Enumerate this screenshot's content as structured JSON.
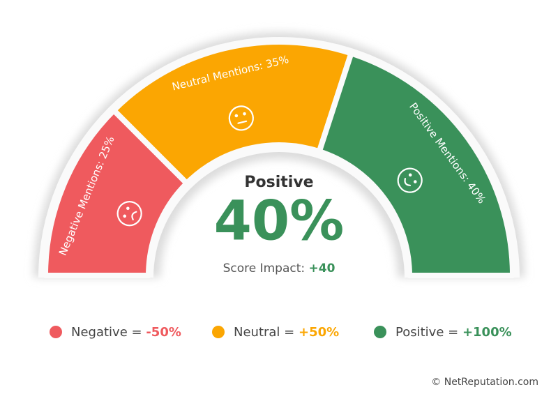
{
  "chart_data": {
    "type": "gauge",
    "values": [
      25,
      35,
      40
    ],
    "value_labels": [
      "Negative Mentions: 25%",
      "Neutral Mentions: 35%",
      "Positive Mentions: 40%"
    ],
    "colors": [
      "#ef5a5e",
      "#fba602",
      "#3a915a"
    ],
    "center": {
      "label": "Positive",
      "value": 40,
      "value_label": "40%",
      "impact_label": "Score Impact:",
      "impact": 40,
      "impact_text": "+40",
      "color": "#3a915a"
    },
    "legend": [
      {
        "name": "Negative =",
        "value": -50,
        "value_label": "-50%",
        "color": "#ef5a5e"
      },
      {
        "name": "Neutral =",
        "value": 50,
        "value_label": "+50%",
        "color": "#fba602"
      },
      {
        "name": "Positive =",
        "value": 100,
        "value_label": "+100%",
        "color": "#3a915a"
      }
    ],
    "footer": "© NetReputation.com"
  }
}
